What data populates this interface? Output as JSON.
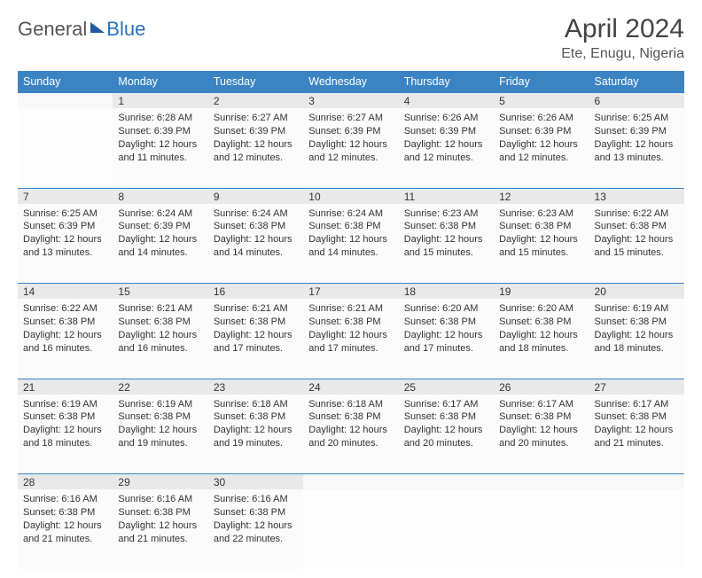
{
  "logo": {
    "part1": "General",
    "part2": "Blue"
  },
  "title": "April 2024",
  "location": "Ete, Enugu, Nigeria",
  "colors": {
    "header_bg": "#3b84c4",
    "header_fg": "#ffffff",
    "rule": "#3b84c4",
    "daynum_bg": "#e9e9e9",
    "cell_bg": "#fbfbfb",
    "text": "#333333",
    "logo_gray": "#555555",
    "logo_blue": "#2d72b8"
  },
  "weekdays": [
    "Sunday",
    "Monday",
    "Tuesday",
    "Wednesday",
    "Thursday",
    "Friday",
    "Saturday"
  ],
  "weeks": [
    {
      "nums": [
        "",
        "1",
        "2",
        "3",
        "4",
        "5",
        "6"
      ],
      "cells": [
        null,
        {
          "sunrise": "6:28 AM",
          "sunset": "6:39 PM",
          "daylight": "12 hours and 11 minutes."
        },
        {
          "sunrise": "6:27 AM",
          "sunset": "6:39 PM",
          "daylight": "12 hours and 12 minutes."
        },
        {
          "sunrise": "6:27 AM",
          "sunset": "6:39 PM",
          "daylight": "12 hours and 12 minutes."
        },
        {
          "sunrise": "6:26 AM",
          "sunset": "6:39 PM",
          "daylight": "12 hours and 12 minutes."
        },
        {
          "sunrise": "6:26 AM",
          "sunset": "6:39 PM",
          "daylight": "12 hours and 12 minutes."
        },
        {
          "sunrise": "6:25 AM",
          "sunset": "6:39 PM",
          "daylight": "12 hours and 13 minutes."
        }
      ]
    },
    {
      "nums": [
        "7",
        "8",
        "9",
        "10",
        "11",
        "12",
        "13"
      ],
      "cells": [
        {
          "sunrise": "6:25 AM",
          "sunset": "6:39 PM",
          "daylight": "12 hours and 13 minutes."
        },
        {
          "sunrise": "6:24 AM",
          "sunset": "6:39 PM",
          "daylight": "12 hours and 14 minutes."
        },
        {
          "sunrise": "6:24 AM",
          "sunset": "6:38 PM",
          "daylight": "12 hours and 14 minutes."
        },
        {
          "sunrise": "6:24 AM",
          "sunset": "6:38 PM",
          "daylight": "12 hours and 14 minutes."
        },
        {
          "sunrise": "6:23 AM",
          "sunset": "6:38 PM",
          "daylight": "12 hours and 15 minutes."
        },
        {
          "sunrise": "6:23 AM",
          "sunset": "6:38 PM",
          "daylight": "12 hours and 15 minutes."
        },
        {
          "sunrise": "6:22 AM",
          "sunset": "6:38 PM",
          "daylight": "12 hours and 15 minutes."
        }
      ]
    },
    {
      "nums": [
        "14",
        "15",
        "16",
        "17",
        "18",
        "19",
        "20"
      ],
      "cells": [
        {
          "sunrise": "6:22 AM",
          "sunset": "6:38 PM",
          "daylight": "12 hours and 16 minutes."
        },
        {
          "sunrise": "6:21 AM",
          "sunset": "6:38 PM",
          "daylight": "12 hours and 16 minutes."
        },
        {
          "sunrise": "6:21 AM",
          "sunset": "6:38 PM",
          "daylight": "12 hours and 17 minutes."
        },
        {
          "sunrise": "6:21 AM",
          "sunset": "6:38 PM",
          "daylight": "12 hours and 17 minutes."
        },
        {
          "sunrise": "6:20 AM",
          "sunset": "6:38 PM",
          "daylight": "12 hours and 17 minutes."
        },
        {
          "sunrise": "6:20 AM",
          "sunset": "6:38 PM",
          "daylight": "12 hours and 18 minutes."
        },
        {
          "sunrise": "6:19 AM",
          "sunset": "6:38 PM",
          "daylight": "12 hours and 18 minutes."
        }
      ]
    },
    {
      "nums": [
        "21",
        "22",
        "23",
        "24",
        "25",
        "26",
        "27"
      ],
      "cells": [
        {
          "sunrise": "6:19 AM",
          "sunset": "6:38 PM",
          "daylight": "12 hours and 18 minutes."
        },
        {
          "sunrise": "6:19 AM",
          "sunset": "6:38 PM",
          "daylight": "12 hours and 19 minutes."
        },
        {
          "sunrise": "6:18 AM",
          "sunset": "6:38 PM",
          "daylight": "12 hours and 19 minutes."
        },
        {
          "sunrise": "6:18 AM",
          "sunset": "6:38 PM",
          "daylight": "12 hours and 20 minutes."
        },
        {
          "sunrise": "6:17 AM",
          "sunset": "6:38 PM",
          "daylight": "12 hours and 20 minutes."
        },
        {
          "sunrise": "6:17 AM",
          "sunset": "6:38 PM",
          "daylight": "12 hours and 20 minutes."
        },
        {
          "sunrise": "6:17 AM",
          "sunset": "6:38 PM",
          "daylight": "12 hours and 21 minutes."
        }
      ]
    },
    {
      "nums": [
        "28",
        "29",
        "30",
        "",
        "",
        "",
        ""
      ],
      "cells": [
        {
          "sunrise": "6:16 AM",
          "sunset": "6:38 PM",
          "daylight": "12 hours and 21 minutes."
        },
        {
          "sunrise": "6:16 AM",
          "sunset": "6:38 PM",
          "daylight": "12 hours and 21 minutes."
        },
        {
          "sunrise": "6:16 AM",
          "sunset": "6:38 PM",
          "daylight": "12 hours and 22 minutes."
        },
        null,
        null,
        null,
        null
      ]
    }
  ],
  "labels": {
    "sunrise": "Sunrise:",
    "sunset": "Sunset:",
    "daylight": "Daylight:"
  }
}
